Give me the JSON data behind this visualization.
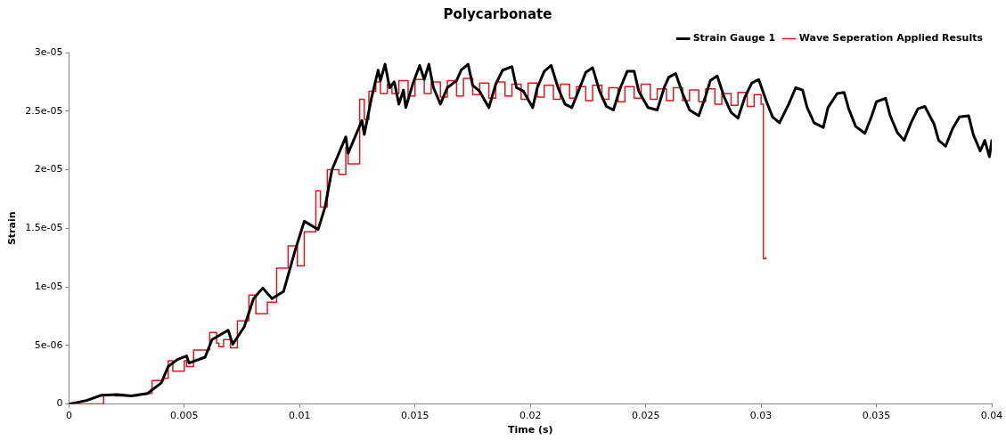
{
  "chart_data": {
    "type": "line",
    "title": "Polycarbonate",
    "xlabel": "Time (s)",
    "ylabel": "Strain",
    "xlim": [
      0,
      0.04
    ],
    "xticks": [
      0,
      0.005,
      0.01,
      0.015,
      0.02,
      0.025,
      0.03,
      0.035,
      0.04
    ],
    "ylim": [
      0,
      3e-05
    ],
    "yticks": [
      0,
      {
        "value": 5e-06,
        "label": "5e-06"
      },
      {
        "value": 1e-05,
        "label": "1e-05"
      },
      {
        "value": 1.5e-05,
        "label": "1.5e-05"
      },
      {
        "value": 2e-05,
        "label": "2e-05"
      },
      {
        "value": 2.5e-05,
        "label": "2.5e-05"
      },
      {
        "value": 3e-05,
        "label": "3e-05"
      }
    ],
    "grid": false,
    "legend": "top right",
    "marker": "none",
    "line_style": "solid",
    "series": [
      {
        "name": "Strain Gauge 1",
        "color": "#000000",
        "x": [
          0,
          0.00076,
          0.0014,
          0.0021,
          0.0027,
          0.0034,
          0.004,
          0.0043,
          0.0047,
          0.0051,
          0.0052,
          0.0059,
          0.0062,
          0.0069,
          0.0071,
          0.0076,
          0.008,
          0.0084,
          0.0088,
          0.0093,
          0.0098,
          0.0102,
          0.0108,
          0.0111,
          0.0114,
          0.012,
          0.0121,
          0.0127,
          0.0128,
          0.0131,
          0.0134,
          0.0135,
          0.0137,
          0.0139,
          0.0141,
          0.0143,
          0.0145,
          0.0146,
          0.0149,
          0.0152,
          0.0154,
          0.0156,
          0.0158,
          0.0161,
          0.0164,
          0.0168,
          0.017,
          0.0173,
          0.0175,
          0.0178,
          0.0182,
          0.0185,
          0.0188,
          0.0192,
          0.0194,
          0.0197,
          0.0201,
          0.0203,
          0.0206,
          0.0209,
          0.0212,
          0.0215,
          0.0218,
          0.0221,
          0.0224,
          0.0227,
          0.023,
          0.0233,
          0.0236,
          0.0239,
          0.0242,
          0.0245,
          0.0247,
          0.0251,
          0.0255,
          0.0258,
          0.026,
          0.0263,
          0.0266,
          0.0269,
          0.0273,
          0.0276,
          0.0278,
          0.0281,
          0.0284,
          0.0287,
          0.029,
          0.0293,
          0.0296,
          0.0299,
          0.0302,
          0.0305,
          0.0308,
          0.0312,
          0.0315,
          0.0318,
          0.032,
          0.0323,
          0.0327,
          0.0329,
          0.0333,
          0.0336,
          0.0338,
          0.0341,
          0.0345,
          0.0348,
          0.035,
          0.0354,
          0.0356,
          0.0359,
          0.0362,
          0.0365,
          0.0368,
          0.0371,
          0.0375,
          0.0377,
          0.038,
          0.0383,
          0.0386,
          0.039,
          0.0392,
          0.0395,
          0.0397,
          0.0399,
          0.04
        ],
        "values": [
          0,
          3e-07,
          7.5e-07,
          8e-07,
          7e-07,
          9e-07,
          1.8e-06,
          3.2e-06,
          3.8e-06,
          4.1e-06,
          3.5e-06,
          4e-06,
          5.5e-06,
          6.3e-06,
          5.1e-06,
          6.6e-06,
          9e-06,
          9.9e-06,
          9e-06,
          9.6e-06,
          1.31e-05,
          1.56e-05,
          1.49e-05,
          1.68e-05,
          2e-05,
          2.28e-05,
          2.14e-05,
          2.42e-05,
          2.3e-05,
          2.6e-05,
          2.85e-05,
          2.76e-05,
          2.9e-05,
          2.7e-05,
          2.75e-05,
          2.56e-05,
          2.68e-05,
          2.53e-05,
          2.73e-05,
          2.89e-05,
          2.77e-05,
          2.9e-05,
          2.7e-05,
          2.56e-05,
          2.7e-05,
          2.76e-05,
          2.85e-05,
          2.9e-05,
          2.72e-05,
          2.67e-05,
          2.53e-05,
          2.73e-05,
          2.85e-05,
          2.88e-05,
          2.7e-05,
          2.67e-05,
          2.53e-05,
          2.7e-05,
          2.84e-05,
          2.89e-05,
          2.7e-05,
          2.56e-05,
          2.53e-05,
          2.68e-05,
          2.83e-05,
          2.87e-05,
          2.67e-05,
          2.54e-05,
          2.51e-05,
          2.7e-05,
          2.84e-05,
          2.84e-05,
          2.67e-05,
          2.53e-05,
          2.51e-05,
          2.7e-05,
          2.79e-05,
          2.82e-05,
          2.65e-05,
          2.51e-05,
          2.46e-05,
          2.63e-05,
          2.76e-05,
          2.8e-05,
          2.62e-05,
          2.49e-05,
          2.44e-05,
          2.62e-05,
          2.74e-05,
          2.77e-05,
          2.6e-05,
          2.45e-05,
          2.4e-05,
          2.56e-05,
          2.7e-05,
          2.68e-05,
          2.53e-05,
          2.4e-05,
          2.36e-05,
          2.53e-05,
          2.65e-05,
          2.66e-05,
          2.52e-05,
          2.37e-05,
          2.31e-05,
          2.46e-05,
          2.58e-05,
          2.61e-05,
          2.46e-05,
          2.32e-05,
          2.25e-05,
          2.4e-05,
          2.52e-05,
          2.54e-05,
          2.39e-05,
          2.25e-05,
          2.2e-05,
          2.35e-05,
          2.45e-05,
          2.46e-05,
          2.3e-05,
          2.16e-05,
          2.25e-05,
          2.11e-05,
          2.25e-05
        ]
      },
      {
        "name": "Wave Seperation Applied Results",
        "color": "#e8141c",
        "type": "step",
        "x": [
          0,
          0.0015,
          0.002,
          0.003,
          0.0034,
          0.0036,
          0.0041,
          0.0043,
          0.0045,
          0.005,
          0.0051,
          0.0054,
          0.0059,
          0.0061,
          0.0064,
          0.0065,
          0.0067,
          0.007,
          0.0073,
          0.0078,
          0.0081,
          0.0086,
          0.009,
          0.0095,
          0.0099,
          0.0102,
          0.0107,
          0.0109,
          0.0112,
          0.0117,
          0.012,
          0.0121,
          0.0126,
          0.0128,
          0.013,
          0.0133,
          0.0135,
          0.0138,
          0.014,
          0.0143,
          0.0147,
          0.015,
          0.0154,
          0.0157,
          0.0161,
          0.0164,
          0.0168,
          0.0171,
          0.0175,
          0.0178,
          0.0182,
          0.0185,
          0.0189,
          0.0192,
          0.0196,
          0.0199,
          0.0203,
          0.0206,
          0.021,
          0.0213,
          0.0217,
          0.022,
          0.0224,
          0.0227,
          0.0231,
          0.0234,
          0.0238,
          0.0241,
          0.0245,
          0.0248,
          0.0252,
          0.0255,
          0.0259,
          0.0262,
          0.0266,
          0.0269,
          0.0273,
          0.0276,
          0.028,
          0.0283,
          0.0287,
          0.029,
          0.0294,
          0.0297,
          0.03,
          0.0301,
          0.0301,
          0.0302
        ],
        "values": [
          0,
          8e-07,
          7e-07,
          8.5e-07,
          9e-07,
          2e-06,
          2.2e-06,
          3.7e-06,
          2.8e-06,
          3.7e-06,
          3.2e-06,
          4.6e-06,
          4.6e-06,
          6.1e-06,
          5.2e-06,
          4.9e-06,
          5.5e-06,
          4.8e-06,
          7.1e-06,
          9.3e-06,
          7.7e-06,
          8.7e-06,
          1.16e-05,
          1.35e-05,
          1.18e-05,
          1.47e-05,
          1.82e-05,
          1.68e-05,
          2e-05,
          1.96e-05,
          2.19e-05,
          2.05e-05,
          2.6e-05,
          2.43e-05,
          2.67e-05,
          2.75e-05,
          2.65e-05,
          2.73e-05,
          2.65e-05,
          2.76e-05,
          2.63e-05,
          2.77e-05,
          2.65e-05,
          2.75e-05,
          2.62e-05,
          2.76e-05,
          2.63e-05,
          2.78e-05,
          2.64e-05,
          2.74e-05,
          2.61e-05,
          2.75e-05,
          2.63e-05,
          2.73e-05,
          2.6e-05,
          2.74e-05,
          2.62e-05,
          2.72e-05,
          2.6e-05,
          2.73e-05,
          2.61e-05,
          2.71e-05,
          2.59e-05,
          2.72e-05,
          2.6e-05,
          2.7e-05,
          2.58e-05,
          2.71e-05,
          2.61e-05,
          2.73e-05,
          2.6e-05,
          2.69e-05,
          2.59e-05,
          2.7e-05,
          2.59e-05,
          2.68e-05,
          2.58e-05,
          2.69e-05,
          2.56e-05,
          2.65e-05,
          2.55e-05,
          2.66e-05,
          2.54e-05,
          2.64e-05,
          2.56e-05,
          2.5e-05,
          1.24e-05,
          1.25e-05
        ]
      }
    ]
  }
}
